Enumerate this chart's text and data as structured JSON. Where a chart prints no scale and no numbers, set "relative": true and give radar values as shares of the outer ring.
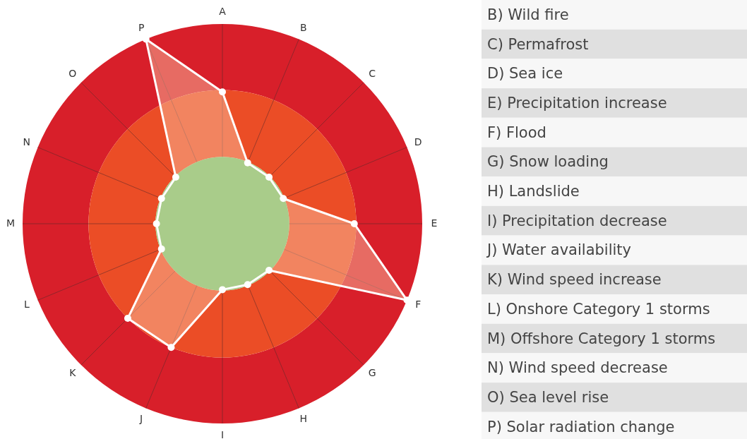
{
  "chart_data": {
    "type": "radar",
    "categories": [
      "A",
      "B",
      "C",
      "D",
      "E",
      "F",
      "G",
      "H",
      "I",
      "J",
      "K",
      "L",
      "M",
      "N",
      "O",
      "P"
    ],
    "relative": true,
    "grid": true,
    "marker": "circle",
    "series": [
      {
        "color": "#ffffff",
        "values": [
          0.66,
          0.33,
          0.33,
          0.33,
          0.66,
          1,
          0.33,
          0.33,
          0.33,
          0.67,
          0.67,
          0.33,
          0.33,
          0.33,
          0.33,
          1
        ]
      }
    ],
    "annotations": [
      "B) Wild fire",
      "C) Permafrost",
      "D) Sea ice",
      "E) Precipitation increase",
      "F) Flood",
      "G) Snow loading",
      "H) Landslide",
      "I) Precipitation decrease",
      "J) Water availability",
      "K) Wind speed increase",
      "L) Onshore Category 1 storms",
      "M) Offshore Category 1 storms",
      "N) Wind speed decrease",
      "O) Sea level rise",
      "P) Solar radiation change"
    ]
  }
}
